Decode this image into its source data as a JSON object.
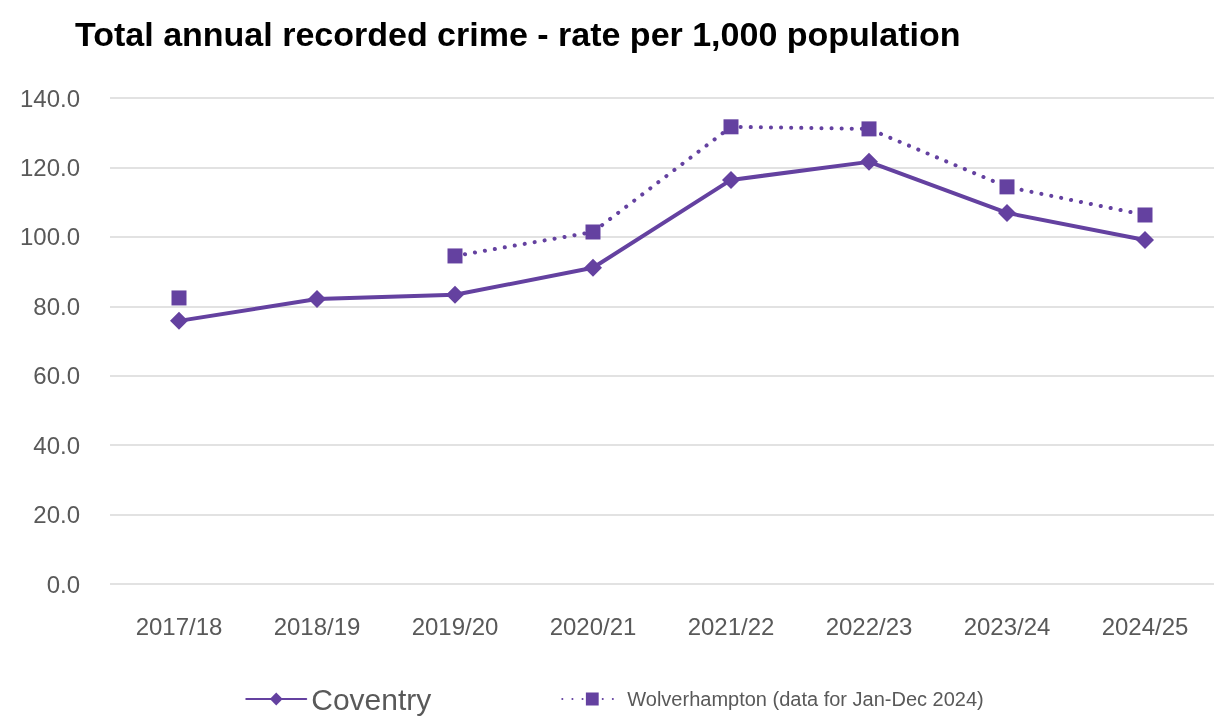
{
  "chart_data": {
    "type": "line",
    "title": "Total annual recorded crime - rate per 1,000 population",
    "categories": [
      "2017/18",
      "2018/19",
      "2019/20",
      "2020/21",
      "2021/22",
      "2022/23",
      "2023/24",
      "2024/25"
    ],
    "series": [
      {
        "name": "Coventry",
        "color": "#6441a0",
        "marker": "diamond",
        "line_style": "solid",
        "values": [
          75.8,
          82.1,
          83.3,
          91.1,
          116.4,
          121.6,
          106.9,
          99.1
        ]
      },
      {
        "name": "Wolverhampton (data for Jan-Dec 2024)",
        "color": "#6441a0",
        "marker": "square",
        "line_style": "dotted",
        "values": [
          82.4,
          null,
          94.5,
          101.4,
          131.7,
          131.1,
          114.4,
          106.3
        ]
      }
    ],
    "ylim": [
      0,
      140
    ],
    "yticks": [
      {
        "value": 0,
        "label": "0.0"
      },
      {
        "value": 20,
        "label": "20.0"
      },
      {
        "value": 40,
        "label": "40.0"
      },
      {
        "value": 60,
        "label": "60.0"
      },
      {
        "value": 80,
        "label": "80.0"
      },
      {
        "value": 100,
        "label": "100.0"
      },
      {
        "value": 120,
        "label": "120.0"
      },
      {
        "value": 140,
        "label": "140.0"
      }
    ],
    "grid": "y",
    "legend": "bottom"
  }
}
